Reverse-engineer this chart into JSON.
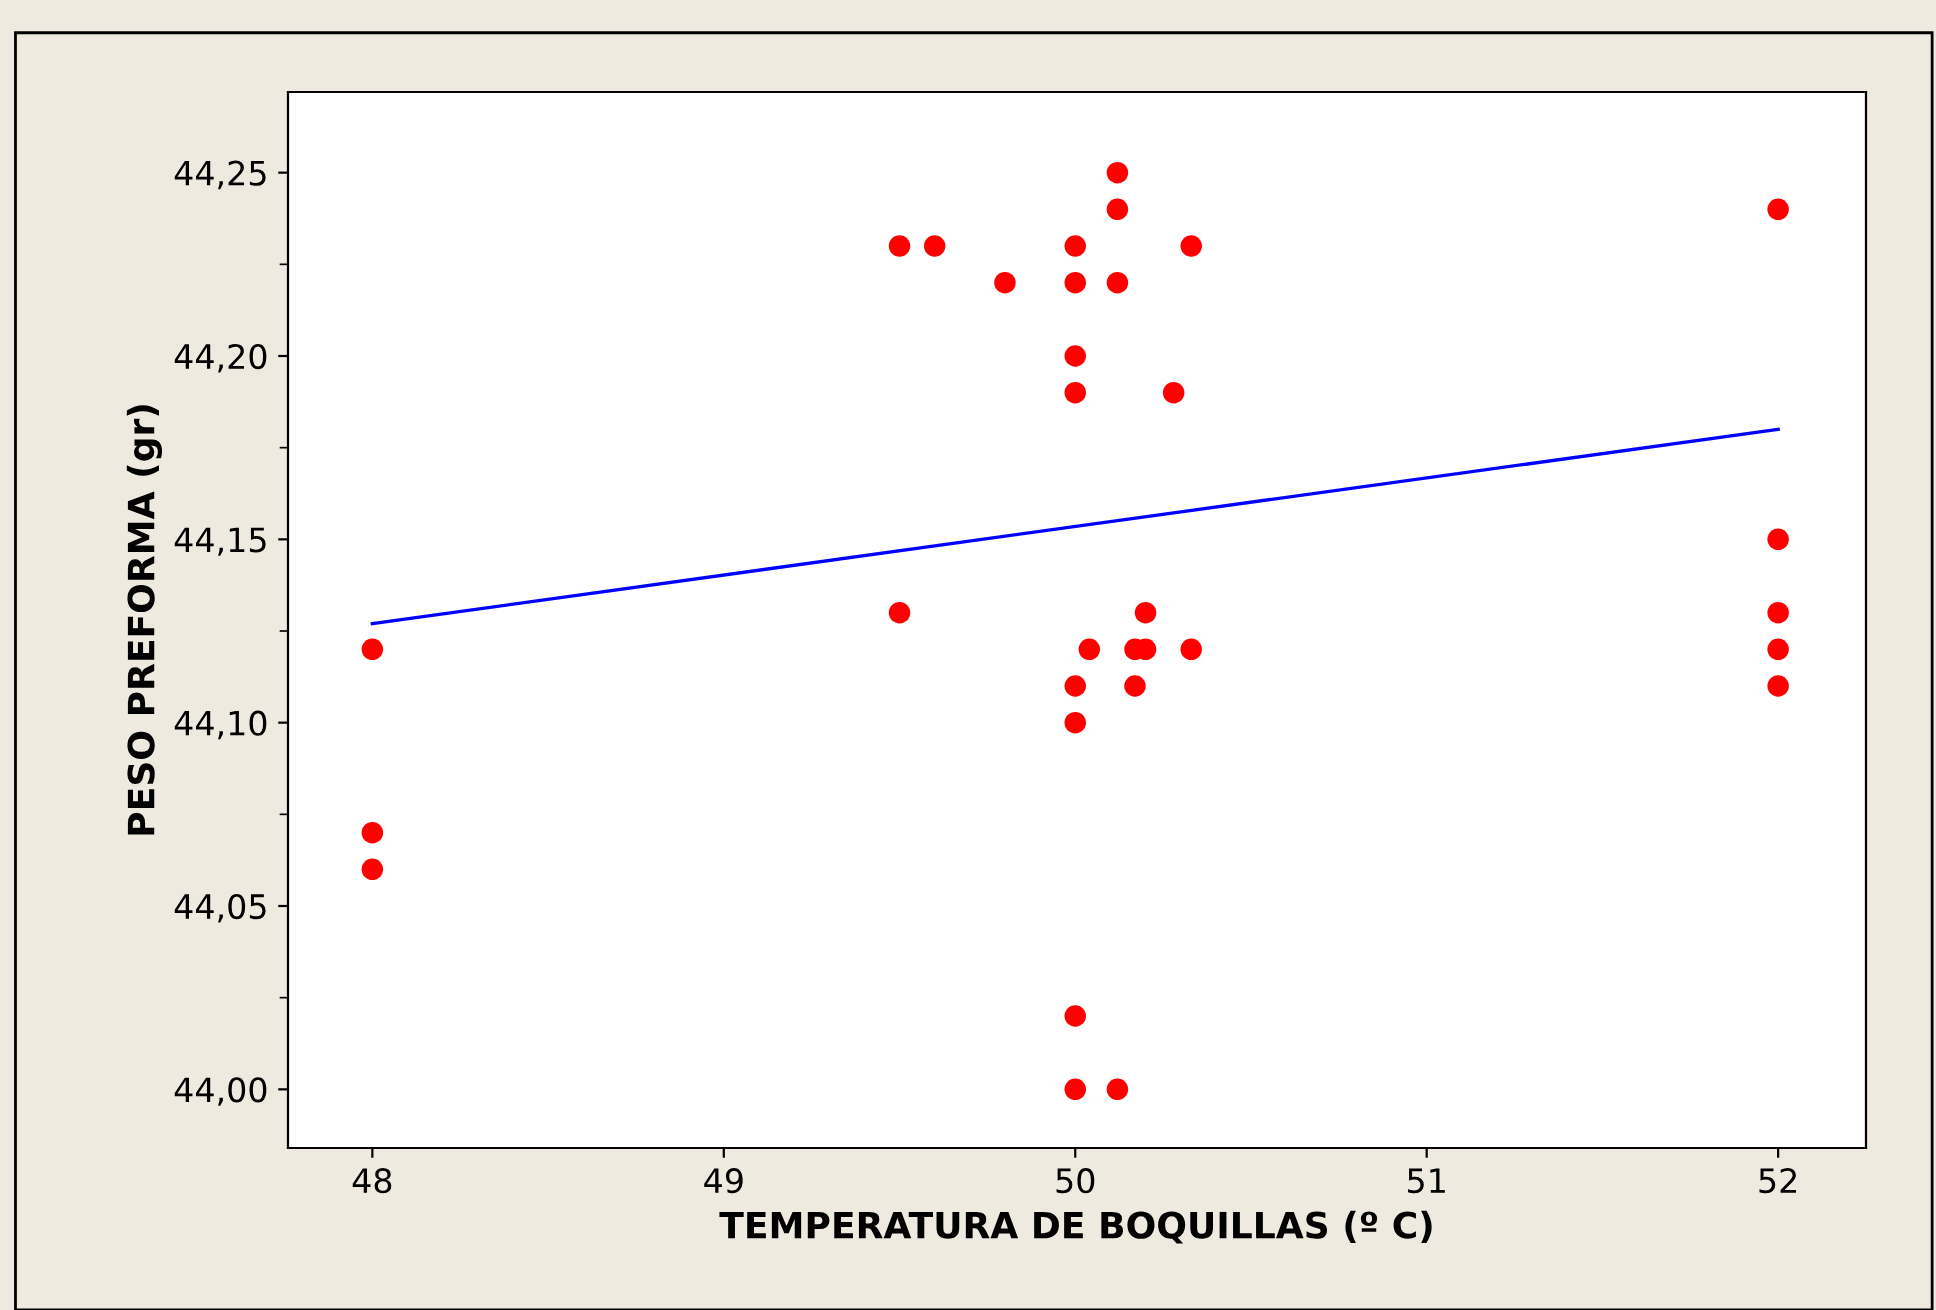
{
  "chart_data": {
    "type": "scatter",
    "xlabel": "TEMPERATURA DE BOQUILLAS (º C)",
    "ylabel": "PESO PREFORMA (gr)",
    "xlim": [
      47.76,
      52.25
    ],
    "ylim": [
      43.984,
      44.272
    ],
    "xticks": [
      48,
      49,
      50,
      51,
      52
    ],
    "yticks": [
      {
        "value": 44.0,
        "label": "44,00"
      },
      {
        "value": 44.05,
        "label": "44,05"
      },
      {
        "value": 44.1,
        "label": "44,10"
      },
      {
        "value": 44.15,
        "label": "44,15"
      },
      {
        "value": 44.2,
        "label": "44,20"
      },
      {
        "value": 44.25,
        "label": "44,25"
      }
    ],
    "grid": false,
    "series": [
      {
        "color": "#ff0000",
        "marker": "circle",
        "x": [
          48,
          48,
          48,
          49.5,
          49.5,
          49.6,
          49.8,
          50,
          50,
          50,
          50,
          50,
          50,
          50,
          50,
          50.04,
          50.12,
          50.12,
          50.12,
          50.12,
          50.17,
          50.17,
          50.2,
          50.2,
          50.28,
          50.33,
          50.33,
          52,
          52,
          52,
          52,
          52
        ],
        "values": [
          44.12,
          44.07,
          44.06,
          44.23,
          44.13,
          44.23,
          44.22,
          44.23,
          44.22,
          44.2,
          44.19,
          44.11,
          44.1,
          44.02,
          44.0,
          44.12,
          44.25,
          44.24,
          44.22,
          44.0,
          44.12,
          44.11,
          44.13,
          44.12,
          44.19,
          44.23,
          44.12,
          44.24,
          44.15,
          44.13,
          44.12,
          44.11
        ]
      },
      {
        "type": "line",
        "marker": "none",
        "color": "#0000ff",
        "x": [
          48,
          52
        ],
        "values": [
          44.127,
          44.18
        ]
      }
    ]
  }
}
